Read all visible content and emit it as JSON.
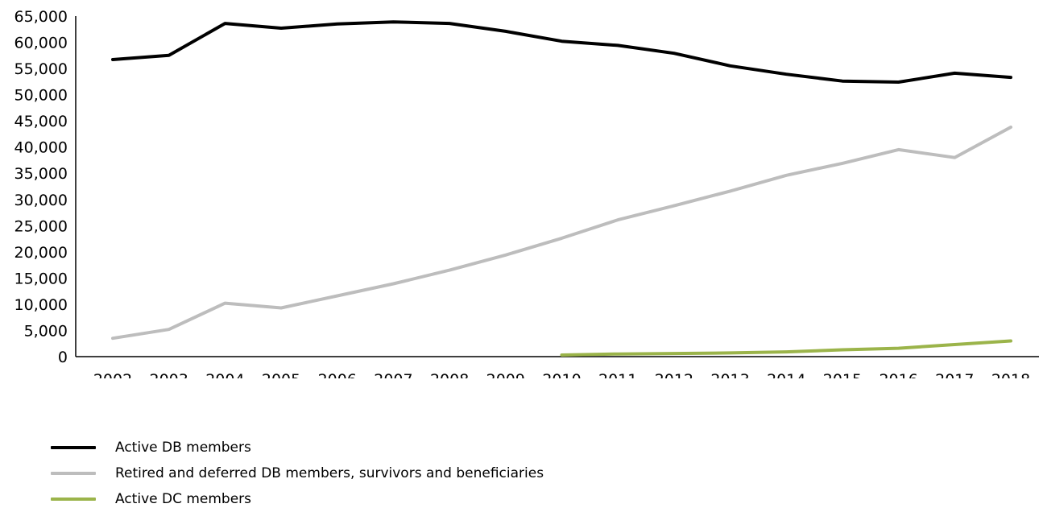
{
  "chart_data": {
    "type": "line",
    "title": "",
    "xlabel": "",
    "ylabel": "",
    "x": [
      "2002",
      "2003",
      "2004",
      "2005",
      "2006",
      "2007",
      "2008",
      "2009",
      "2010",
      "2011",
      "2012",
      "2013",
      "2014",
      "2015",
      "2016",
      "2017",
      "2018"
    ],
    "ylim": [
      0,
      65000
    ],
    "yticks": [
      "0",
      "5,000",
      "10,000",
      "15,000",
      "20,000",
      "25,000",
      "30,000",
      "35,000",
      "40,000",
      "45,000",
      "50,000",
      "55,000",
      "60,000",
      "65,000"
    ],
    "ytick_values": [
      0,
      5000,
      10000,
      15000,
      20000,
      25000,
      30000,
      35000,
      40000,
      45000,
      50000,
      55000,
      60000,
      65000
    ],
    "grid": false,
    "legend_position": "bottom-left",
    "series": [
      {
        "name": "Active DB members",
        "color": "#000000",
        "values": [
          56700,
          57500,
          63600,
          62700,
          63500,
          63900,
          63600,
          62100,
          60200,
          59400,
          57900,
          55500,
          53900,
          52600,
          52400,
          54100,
          53300
        ]
      },
      {
        "name": "Retired and deferred DB members, survivors and beneficiaries",
        "color": "#bdbdbd",
        "values": [
          3500,
          5200,
          10200,
          9300,
          11600,
          13900,
          16500,
          19400,
          22600,
          26100,
          28800,
          31600,
          34600,
          36900,
          39500,
          38000,
          43800
        ]
      },
      {
        "name": "Active DC members",
        "color": "#9bb44a",
        "values": [
          null,
          null,
          null,
          null,
          null,
          null,
          null,
          null,
          300,
          500,
          600,
          700,
          900,
          1300,
          1600,
          2300,
          3000
        ]
      }
    ]
  }
}
